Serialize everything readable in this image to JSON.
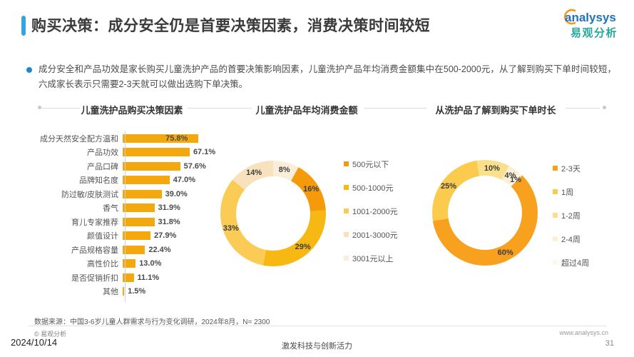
{
  "header": {
    "title": "购买决策：成分安全仍是首要决策因素，消费决策时间较短",
    "accent_color": "#33A6DF",
    "logo": {
      "brand": "analysys",
      "brand_cn": "易观分析",
      "brand_color": "#2173B9",
      "brand_cn_color": "#27A79B",
      "swoosh_color": "#F7941E"
    }
  },
  "summary": {
    "bullet_color": "#1E86D3",
    "text": "成分安全和产品功效是家长购买儿童洗护产品的首要决策影响因素，儿童洗护产品年均消费金额集中在500-2000元，从了解到购买下单时间较短，六成家长表示只需要2-3天就可以做出选购下单决策。"
  },
  "sections": [
    {
      "title": "儿童洗护品购买决策因素"
    },
    {
      "title": "儿童洗护品年均消费金额"
    },
    {
      "title": "从洗护品了解到购买下单时长"
    }
  ],
  "chart_data": [
    {
      "type": "bar",
      "orientation": "horizontal",
      "title": "儿童洗护品购买决策因素",
      "categories": [
        "成分天然安全配方温和",
        "产品功效",
        "产品口碑",
        "品牌知名度",
        "防过敏/皮肤测试",
        "香气",
        "育儿专家推荐",
        "颜值设计",
        "产品规格容量",
        "高性价比",
        "是否促销折扣",
        "其他"
      ],
      "values": [
        75.8,
        67.1,
        57.6,
        47.0,
        39.0,
        31.9,
        31.8,
        27.9,
        22.4,
        13.0,
        11.1,
        1.5
      ],
      "unit": "%",
      "xlim": [
        0,
        80
      ],
      "grid": false,
      "bar_color": "#F3A90E",
      "axis_line_color": "#C3D2E4"
    },
    {
      "type": "donut",
      "title": "儿童洗护品年均消费金额",
      "legend_position": "right",
      "segments": [
        {
          "label": "500元以下",
          "value": 16,
          "color": "#F59B0B"
        },
        {
          "label": "500-1000元",
          "value": 29,
          "color": "#F7B814"
        },
        {
          "label": "1001-2000元",
          "value": 33,
          "color": "#FACC55"
        },
        {
          "label": "2001-3000元",
          "value": 14,
          "color": "#F7E2BD"
        },
        {
          "label": "3001元以上",
          "value": 8,
          "color": "#FAEEDA"
        }
      ],
      "draw_start_deg": 0,
      "draw_order": [
        4,
        0,
        1,
        2,
        3
      ]
    },
    {
      "type": "donut",
      "title": "从洗护品了解到购买下单时长",
      "legend_position": "right",
      "segments": [
        {
          "label": "2-3天",
          "value": 60,
          "color": "#F8A11E"
        },
        {
          "label": "1周",
          "value": 25,
          "color": "#FACB4D"
        },
        {
          "label": "1-2周",
          "value": 10,
          "color": "#FAE08D"
        },
        {
          "label": "2-4周",
          "value": 4,
          "color": "#FBF0D4"
        },
        {
          "label": "超过4周",
          "value": 1,
          "color": "#FDF8EB"
        }
      ],
      "draw_start_deg": 27,
      "draw_order": [
        3,
        4,
        0,
        1,
        2
      ]
    }
  ],
  "footer": {
    "source": "数据来源：中国3-6岁儿童人群需求与行为变化调研，2024年8月，N= 2300",
    "copyright": "© 易观分析",
    "website": "www.analysys.cn",
    "date": "2024/10/14",
    "slogan": "激发科技与创新活力",
    "page_number": "31"
  }
}
